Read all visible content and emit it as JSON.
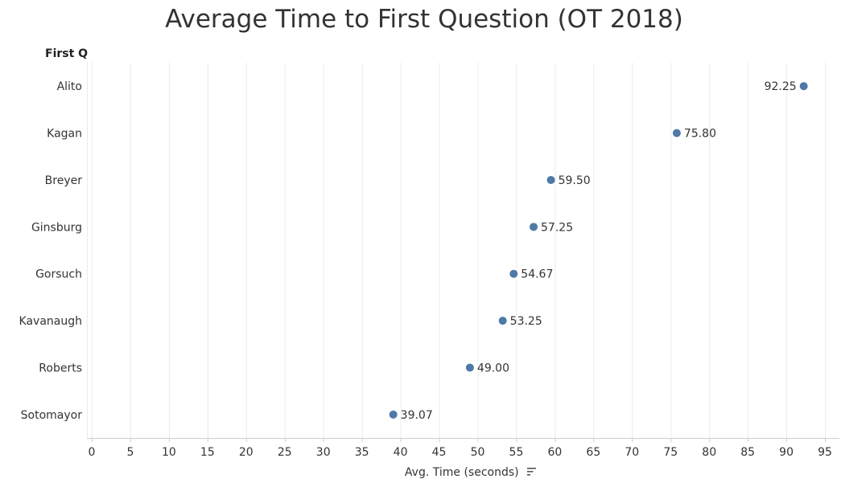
{
  "chart_data": {
    "type": "scatter",
    "title": "Average Time to First Question (OT 2018)",
    "row_header": "First Q",
    "xlabel": "Avg. Time (seconds)",
    "xlim": [
      0,
      96
    ],
    "xticks": [
      0,
      5,
      10,
      15,
      20,
      25,
      30,
      35,
      40,
      45,
      50,
      55,
      60,
      65,
      70,
      75,
      80,
      85,
      90,
      95
    ],
    "categories": [
      "Alito",
      "Kagan",
      "Breyer",
      "Ginsburg",
      "Gorsuch",
      "Kavanaugh",
      "Roberts",
      "Sotomayor"
    ],
    "values": [
      92.25,
      75.8,
      59.5,
      57.25,
      54.67,
      53.25,
      49.0,
      39.07
    ],
    "labels": [
      "92.25",
      "75.80",
      "59.50",
      "57.25",
      "54.67",
      "53.25",
      "49.00",
      "39.07"
    ],
    "grid": true,
    "colors": {
      "point": "#4e79a7",
      "grid": "#ebebeb",
      "axis": "#cccccc"
    }
  },
  "icons": {
    "sort": "sort-descending-icon"
  }
}
